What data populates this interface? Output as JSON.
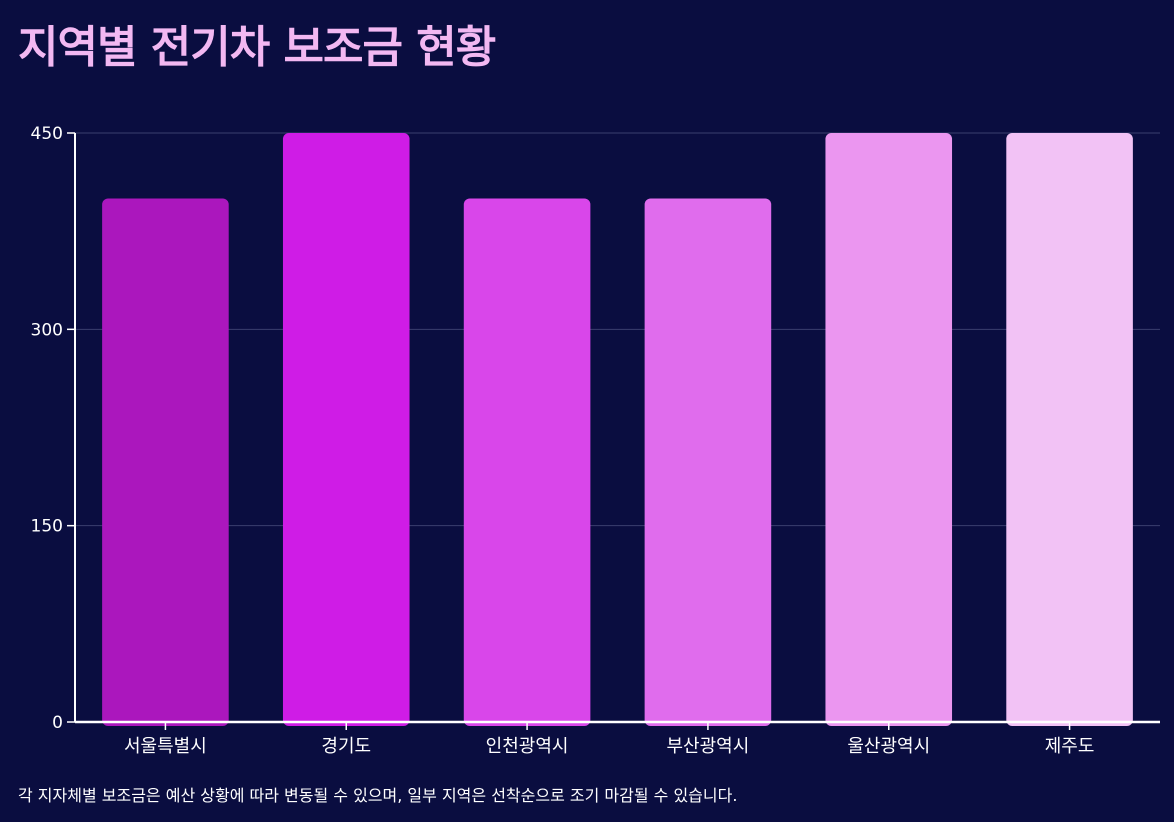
{
  "title": "지역별 전기차 보조금 현황",
  "footnote": "각 지자체별 보조금은 예산 상황에 따라 변동될 수 있으며, 일부 지역은 선착순으로 조기 마감될 수 있습니다.",
  "colors": {
    "background": "#0a0d40",
    "title": "#f2b8f2",
    "grid": "#3b3f6e",
    "axis": "#ffffff"
  },
  "chart_data": {
    "type": "bar",
    "title": "지역별 전기차 보조금 현황",
    "xlabel": "",
    "ylabel": "",
    "ylim": [
      0,
      450
    ],
    "yticks": [
      0,
      150,
      300,
      450
    ],
    "grid": true,
    "legend": "none",
    "categories": [
      "서울특별시",
      "경기도",
      "인천광역시",
      "부산광역시",
      "울산광역시",
      "제주도"
    ],
    "values": [
      400,
      450,
      400,
      400,
      450,
      450
    ],
    "bar_colors": [
      "#ab17bd",
      "#cf1ce6",
      "#d946ea",
      "#e06ced",
      "#eb96f0",
      "#f2c2f5"
    ]
  }
}
